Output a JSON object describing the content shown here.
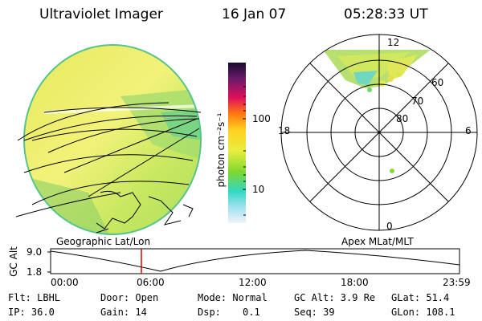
{
  "header": {
    "instrument": "Ultraviolet Imager",
    "date": "16 Jan 07",
    "time": "05:28:33 UT"
  },
  "colorbar": {
    "unit_label": "photon cm⁻²s⁻¹",
    "ticks": [
      "100",
      "10"
    ]
  },
  "polar_plot": {
    "mlt_labels": [
      "12",
      "18",
      "6",
      "0"
    ],
    "mlat_labels": [
      "60",
      "70",
      "80"
    ]
  },
  "panel_labels": {
    "left": "Geographic Lat/Lon",
    "right": "Apex MLat/MLT"
  },
  "altitude_plot": {
    "ylabel": "GC Alt",
    "y_ticks": [
      "9.0",
      "1.8"
    ],
    "x_ticks": [
      "00:00",
      "06:00",
      "12:00",
      "18:00",
      "23:59"
    ]
  },
  "info": {
    "flt": "Flt: LBHL",
    "ip": "IP: 36.0",
    "door": "Door: Open",
    "gain": "Gain: 14",
    "mode": "Mode: Normal",
    "dsp_label": "Dsp:",
    "dsp_value": "0.1",
    "gc_alt": "GC Alt: 3.9 Re",
    "seq": "Seq: 39",
    "glat": "GLat: 51.4",
    "glon": "GLon: 108.1"
  }
}
